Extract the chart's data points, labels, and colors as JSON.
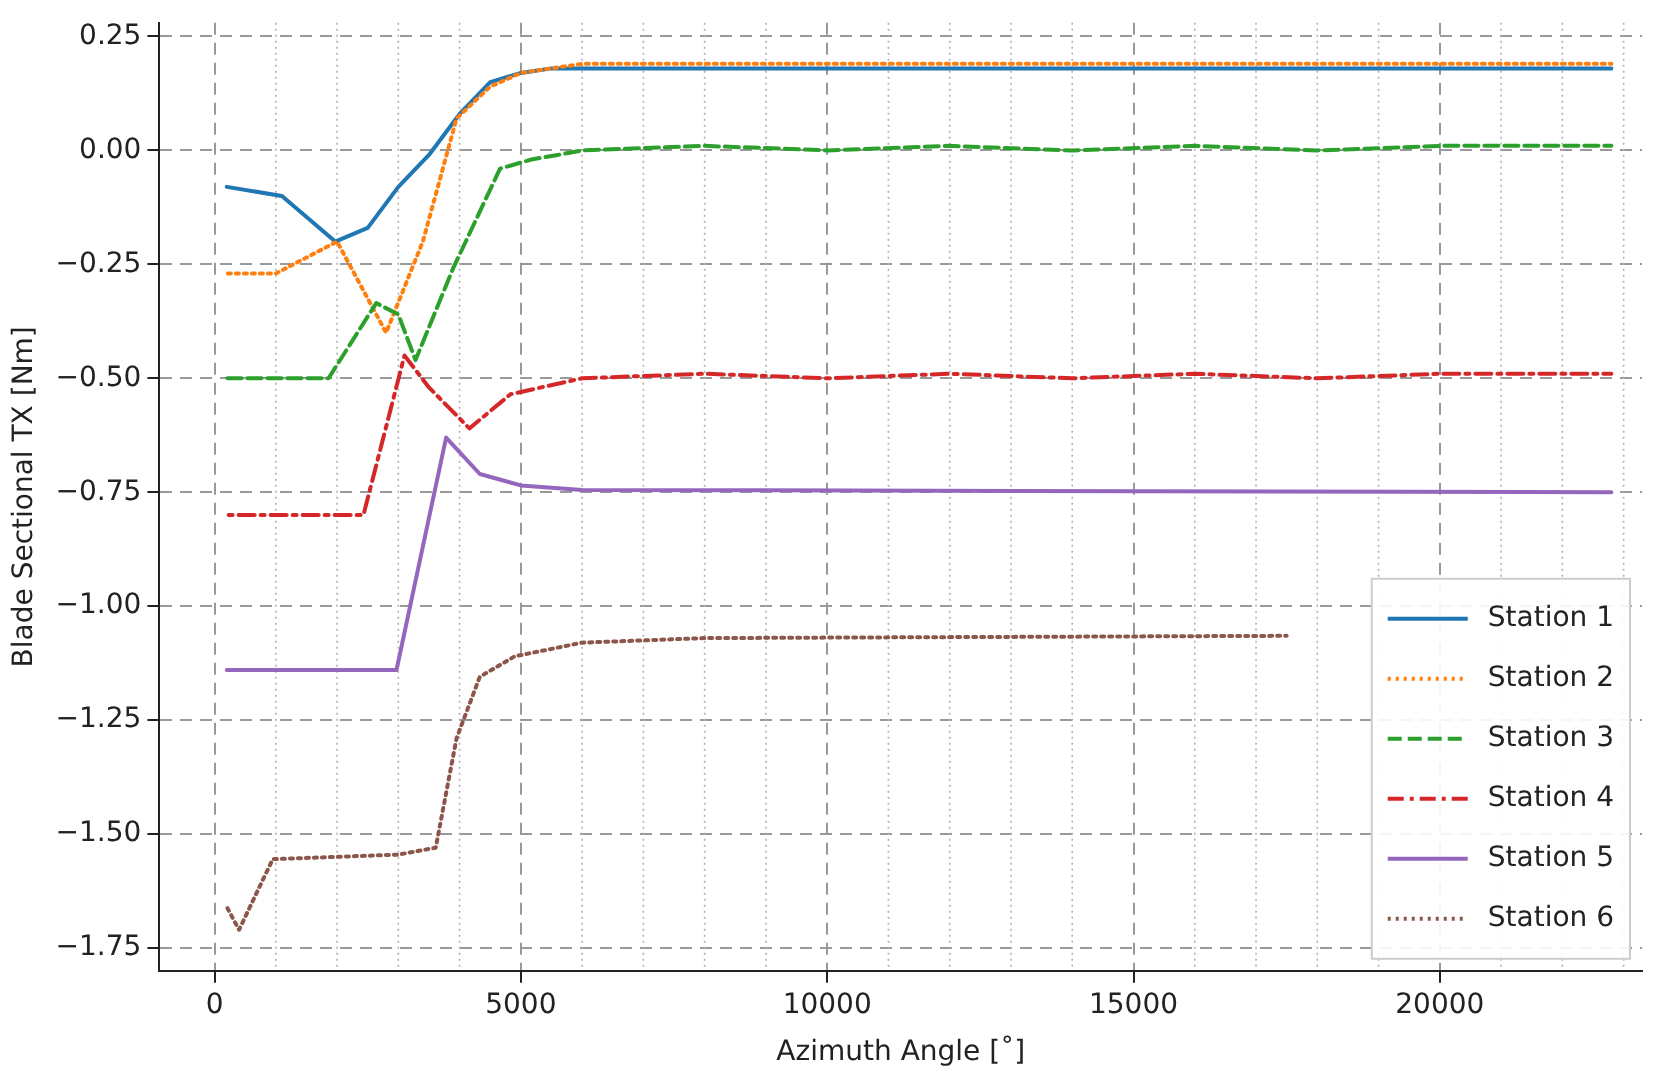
{
  "chart_data": {
    "type": "line",
    "xlabel": "Azimuth Angle [˚]",
    "ylabel": "Blade Sectional TX [Nm]",
    "xlim": [
      -900,
      23300
    ],
    "ylim": [
      -1.8,
      0.28
    ],
    "xticks": [
      0,
      5000,
      10000,
      15000,
      20000
    ],
    "yticks": [
      {
        "value": 0.25,
        "label": "0.25"
      },
      {
        "value": 0,
        "label": "0.00"
      },
      {
        "value": -0.25,
        "label": "−0.25"
      },
      {
        "value": -0.5,
        "label": "−0.50"
      },
      {
        "value": -0.75,
        "label": "−0.75"
      },
      {
        "value": -1,
        "label": "−1.00"
      },
      {
        "value": -1.25,
        "label": "−1.25"
      },
      {
        "value": -1.5,
        "label": "−1.50"
      },
      {
        "value": -1.75,
        "label": "−1.75"
      }
    ],
    "grid": true,
    "legend": "bottom right",
    "marker": "none",
    "series": [
      {
        "name": "Station 1",
        "color": "#1f77b4",
        "line_style": "solid",
        "x": [
          200,
          1100,
          1970,
          2500,
          3000,
          3500,
          4000,
          4500,
          5000,
          5500,
          6000,
          22800
        ],
        "values": [
          -0.08,
          -0.1,
          -0.2,
          -0.17,
          -0.08,
          -0.01,
          0.08,
          0.15,
          0.17,
          0.18,
          0.18,
          0.18
        ]
      },
      {
        "name": "Station 2",
        "color": "#ff7f0e",
        "line_style": "dotted",
        "x": [
          200,
          1000,
          2000,
          2800,
          3400,
          3950,
          4500,
          5000,
          6000,
          22800
        ],
        "values": [
          -0.27,
          -0.27,
          -0.2,
          -0.4,
          -0.2,
          0.07,
          0.14,
          0.17,
          0.19,
          0.19
        ]
      },
      {
        "name": "Station 3",
        "color": "#2ca02c",
        "line_style": "dashed",
        "x": [
          200,
          1860,
          2640,
          3000,
          3280,
          3890,
          4660,
          5170,
          5600,
          6000,
          8000,
          10000,
          12000,
          14000,
          16000,
          18000,
          20000,
          22800
        ],
        "values": [
          -0.5,
          -0.5,
          -0.335,
          -0.36,
          -0.46,
          -0.26,
          -0.04,
          -0.02,
          -0.01,
          0,
          0.01,
          0,
          0.01,
          0,
          0.01,
          0,
          0.01,
          0.01
        ]
      },
      {
        "name": "Station 4",
        "color": "#d62728",
        "line_style": "dashdot",
        "x": [
          200,
          2430,
          3100,
          3500,
          4160,
          4830,
          6000,
          8000,
          10000,
          12000,
          14000,
          16000,
          18000,
          20000,
          22800
        ],
        "values": [
          -0.8,
          -0.8,
          -0.45,
          -0.52,
          -0.61,
          -0.535,
          -0.5,
          -0.49,
          -0.5,
          -0.49,
          -0.5,
          -0.49,
          -0.5,
          -0.49,
          -0.49
        ]
      },
      {
        "name": "Station 5",
        "color": "#9467bd",
        "line_style": "solid",
        "x": [
          200,
          2970,
          3780,
          4330,
          5000,
          6000,
          22800
        ],
        "values": [
          -1.14,
          -1.14,
          -0.63,
          -0.71,
          -0.735,
          -0.745,
          -0.75
        ]
      },
      {
        "name": "Station 6",
        "color": "#8c564b",
        "line_style": "dotted",
        "x": [
          200,
          400,
          950,
          2000,
          3000,
          3610,
          3950,
          4330,
          4900,
          6000,
          8000,
          17500
        ],
        "values": [
          -1.66,
          -1.71,
          -1.555,
          -1.55,
          -1.545,
          -1.53,
          -1.29,
          -1.155,
          -1.11,
          -1.08,
          -1.07,
          -1.065
        ]
      }
    ]
  }
}
